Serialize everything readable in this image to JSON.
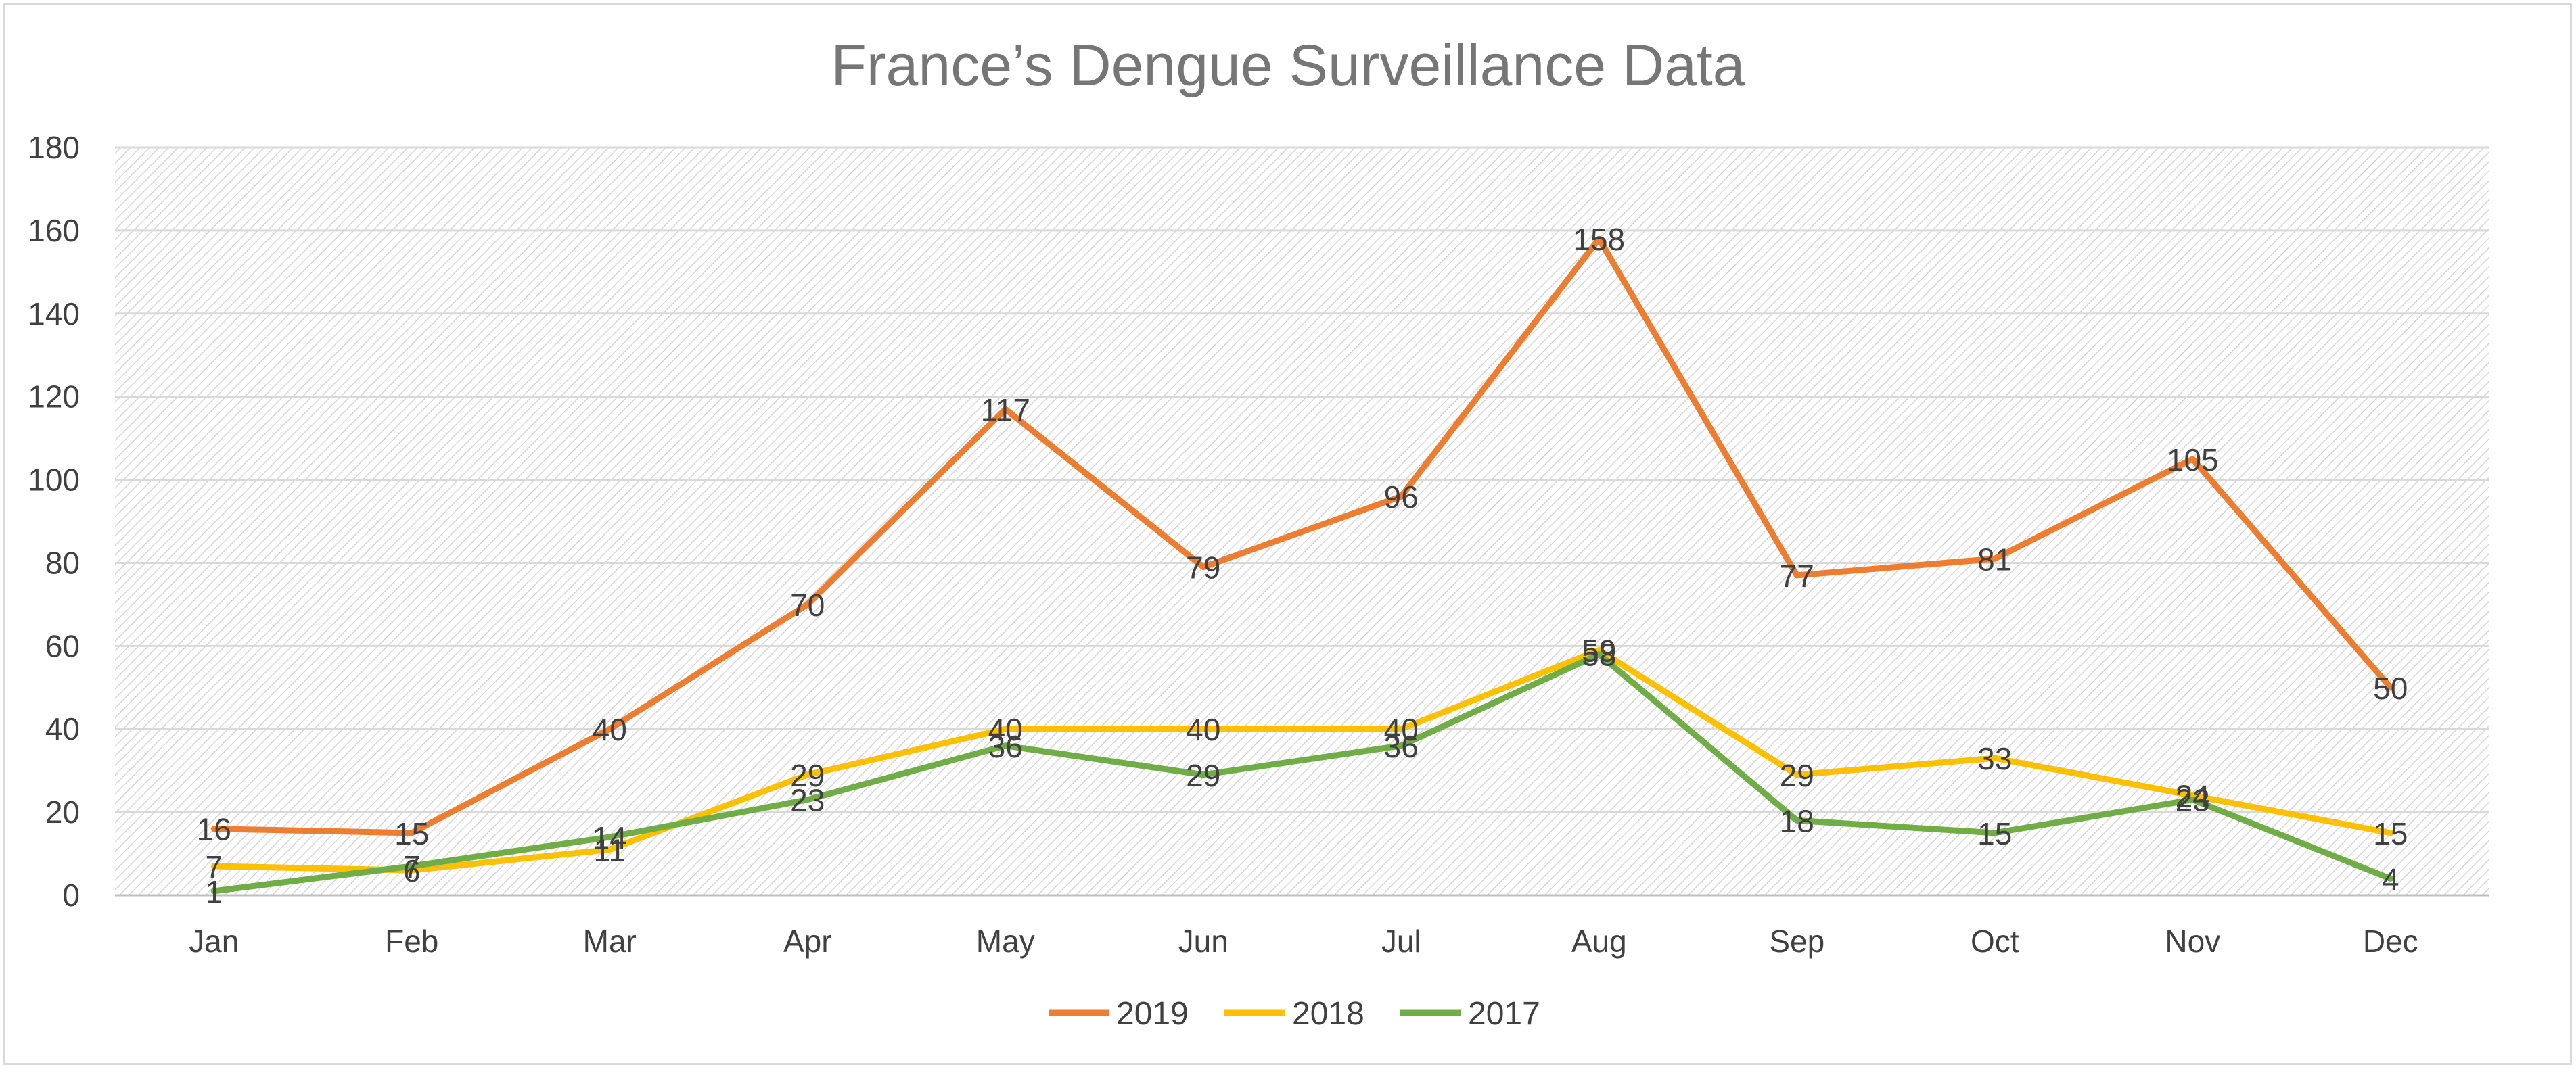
{
  "chart_data": {
    "type": "line",
    "title": "France’s Dengue Surveillance Data",
    "xlabel": "",
    "ylabel": "",
    "categories": [
      "Jan",
      "Feb",
      "Mar",
      "Apr",
      "May",
      "Jun",
      "Jul",
      "Aug",
      "Sep",
      "Oct",
      "Nov",
      "Dec"
    ],
    "ylim": [
      0,
      180
    ],
    "yticks": [
      0,
      20,
      40,
      60,
      80,
      100,
      120,
      140,
      160,
      180
    ],
    "grid": true,
    "legend_position": "bottom",
    "series": [
      {
        "name": "2019",
        "color": "#ED7D31",
        "values": [
          16,
          15,
          40,
          70,
          117,
          79,
          96,
          158,
          77,
          81,
          105,
          50
        ]
      },
      {
        "name": "2018",
        "color": "#FFC000",
        "values": [
          7,
          6,
          11,
          29,
          40,
          40,
          40,
          59,
          29,
          33,
          24,
          15
        ]
      },
      {
        "name": "2017",
        "color": "#70AD47",
        "values": [
          1,
          7,
          14,
          23,
          36,
          29,
          36,
          58,
          18,
          15,
          23,
          4
        ]
      }
    ]
  }
}
